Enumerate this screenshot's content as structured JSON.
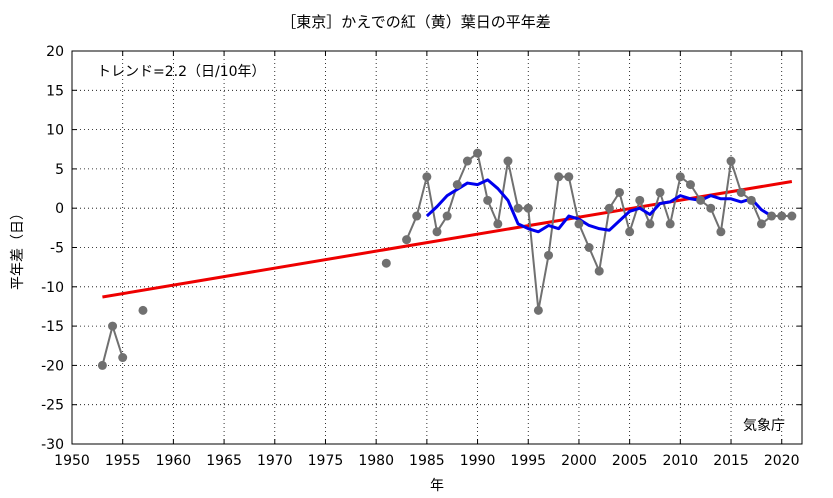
{
  "chart_data": {
    "type": "line",
    "title": "［東京］かえでの紅（黄）葉日の平年差",
    "xlabel": "年",
    "ylabel": "平年差（日）",
    "annotation": "トレンド=2.2（日/10年）",
    "source_label": "気象庁",
    "xlim": [
      1950,
      2022
    ],
    "ylim": [
      -30,
      20
    ],
    "x_ticks": [
      1950,
      1955,
      1960,
      1965,
      1970,
      1975,
      1980,
      1985,
      1990,
      1995,
      2000,
      2005,
      2010,
      2015,
      2020
    ],
    "y_ticks": [
      20,
      15,
      10,
      5,
      0,
      -5,
      -10,
      -15,
      -20,
      -25,
      -30
    ],
    "grid": true,
    "series": [
      {
        "kind": "observed",
        "color": "#707070",
        "connect_consecutive_years": true,
        "points": [
          [
            1953,
            -20
          ],
          [
            1954,
            -15
          ],
          [
            1955,
            -19
          ],
          [
            1957,
            -13
          ],
          [
            1981,
            -7
          ],
          [
            1983,
            -4
          ],
          [
            1984,
            -1
          ],
          [
            1985,
            4
          ],
          [
            1986,
            -3
          ],
          [
            1987,
            -1
          ],
          [
            1988,
            3
          ],
          [
            1989,
            6
          ],
          [
            1990,
            7
          ],
          [
            1991,
            1
          ],
          [
            1992,
            -2
          ],
          [
            1993,
            6
          ],
          [
            1994,
            0
          ],
          [
            1995,
            0
          ],
          [
            1996,
            -13
          ],
          [
            1997,
            -6
          ],
          [
            1998,
            4
          ],
          [
            1999,
            4
          ],
          [
            2000,
            -2
          ],
          [
            2001,
            -5
          ],
          [
            2002,
            -8
          ],
          [
            2003,
            0
          ],
          [
            2004,
            2
          ],
          [
            2005,
            -3
          ],
          [
            2006,
            1
          ],
          [
            2007,
            -2
          ],
          [
            2008,
            2
          ],
          [
            2009,
            -2
          ],
          [
            2010,
            4
          ],
          [
            2011,
            3
          ],
          [
            2012,
            1
          ],
          [
            2013,
            0
          ],
          [
            2014,
            -3
          ],
          [
            2015,
            6
          ],
          [
            2016,
            2
          ],
          [
            2017,
            1
          ],
          [
            2018,
            -2
          ],
          [
            2019,
            -1
          ],
          [
            2020,
            -1
          ],
          [
            2021,
            -1
          ]
        ]
      },
      {
        "kind": "5-year running mean",
        "color": "#0000ee",
        "points": [
          [
            1985,
            -1
          ],
          [
            1986,
            0.2
          ],
          [
            1987,
            1.6
          ],
          [
            1988,
            2.4
          ],
          [
            1989,
            3.2
          ],
          [
            1990,
            3.0
          ],
          [
            1991,
            3.6
          ],
          [
            1992,
            2.5
          ],
          [
            1993,
            1.0
          ],
          [
            1994,
            -2.0
          ],
          [
            1995,
            -2.6
          ],
          [
            1996,
            -3.0
          ],
          [
            1997,
            -2.2
          ],
          [
            1998,
            -2.6
          ],
          [
            1999,
            -1.0
          ],
          [
            2000,
            -1.4
          ],
          [
            2001,
            -2.2
          ],
          [
            2002,
            -2.6
          ],
          [
            2003,
            -2.8
          ],
          [
            2004,
            -1.6
          ],
          [
            2005,
            -0.4
          ],
          [
            2006,
            0.0
          ],
          [
            2007,
            -0.8
          ],
          [
            2008,
            0.6
          ],
          [
            2009,
            0.8
          ],
          [
            2010,
            1.6
          ],
          [
            2011,
            1.2
          ],
          [
            2012,
            1.0
          ],
          [
            2013,
            1.6
          ],
          [
            2014,
            1.2
          ],
          [
            2015,
            1.2
          ],
          [
            2016,
            0.8
          ],
          [
            2017,
            1.2
          ],
          [
            2018,
            -0.2
          ],
          [
            2019,
            -1.0
          ]
        ]
      },
      {
        "kind": "trend",
        "color": "#ee0000",
        "points": [
          [
            1953,
            -11.3
          ],
          [
            2021,
            3.4
          ]
        ]
      }
    ]
  }
}
